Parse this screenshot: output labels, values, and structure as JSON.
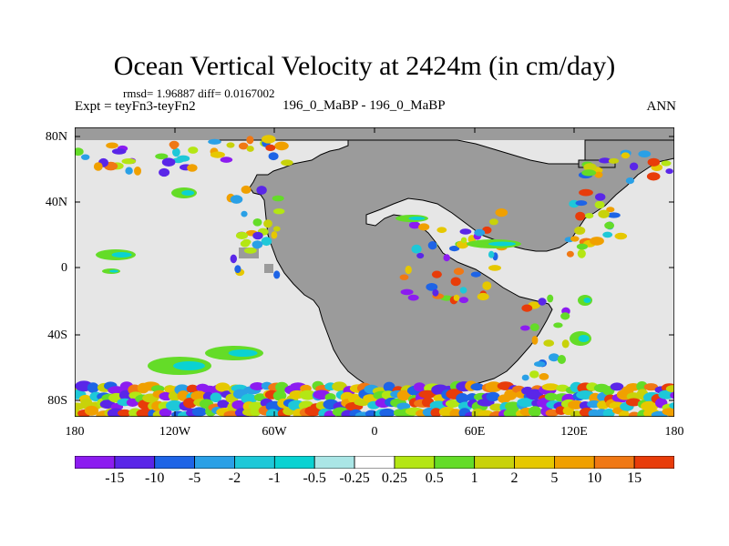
{
  "title": "Ocean Vertical Velocity at 2424m (in cm/day)",
  "stats": "rmsd= 1.96887 diff= 0.0167002",
  "expt": "Expt = teyFn3-teyFn2",
  "case": "196_0_MaBP - 196_0_MaBP",
  "season": "ANN",
  "lat_labels": [
    "80N",
    "40N",
    "0",
    "40S",
    "80S"
  ],
  "lon_labels": [
    "180",
    "120W",
    "60W",
    "0",
    "60E",
    "120E",
    "180"
  ],
  "colors": {
    "land": "#9b9b9b",
    "ocean_neutral": "#e6e6e6",
    "levels": [
      "#8c1cf0",
      "#5a26e8",
      "#1e64e6",
      "#2aa0e6",
      "#1ec8d8",
      "#0ad2d2",
      "#aae6e6",
      "#ffffff",
      "#b4e614",
      "#64dc28",
      "#c8d20a",
      "#e6c800",
      "#f0a000",
      "#f07814",
      "#e83c0a"
    ]
  },
  "colorbar_labels": [
    "-15",
    "-10",
    "-5",
    "-2",
    "-1",
    "-0.5",
    "-0.25",
    "0.25",
    "0.5",
    "1",
    "2",
    "5",
    "10",
    "15"
  ]
}
